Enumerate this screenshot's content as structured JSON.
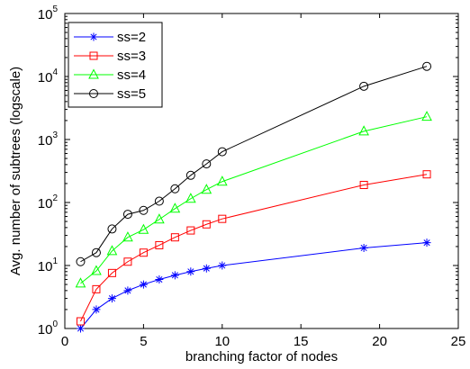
{
  "chart_data": {
    "type": "line",
    "xlabel": "branching factor of nodes",
    "ylabel": "Avg. number of subtrees (logscale)",
    "yscale": "log",
    "xlim": [
      0,
      25
    ],
    "ylim": [
      1,
      100000
    ],
    "xticks": [
      "0",
      "5",
      "10",
      "15",
      "20",
      "25"
    ],
    "yticks": [
      {
        "base": "10",
        "exp": "0"
      },
      {
        "base": "10",
        "exp": "1"
      },
      {
        "base": "10",
        "exp": "2"
      },
      {
        "base": "10",
        "exp": "3"
      },
      {
        "base": "10",
        "exp": "4"
      },
      {
        "base": "10",
        "exp": "5"
      }
    ],
    "grid": false,
    "legend_position": "top-left",
    "x": [
      1,
      2,
      3,
      4,
      5,
      6,
      7,
      8,
      9,
      10,
      19,
      23
    ],
    "series": [
      {
        "name": "ss=2",
        "color": "#0000ff",
        "marker": "asterisk",
        "values": [
          1,
          2,
          3,
          4,
          5,
          6,
          7,
          8,
          9,
          10,
          19,
          23
        ]
      },
      {
        "name": "ss=3",
        "color": "#ff0000",
        "marker": "square",
        "values": [
          1.3,
          4.2,
          7.6,
          11.5,
          16,
          21,
          28,
          36,
          45,
          55,
          190,
          280
        ]
      },
      {
        "name": "ss=4",
        "color": "#00ff00",
        "marker": "triangle",
        "values": [
          5.2,
          8.2,
          17,
          28,
          37,
          54,
          80,
          115,
          160,
          215,
          1350,
          2300
        ]
      },
      {
        "name": "ss=5",
        "color": "#000000",
        "marker": "circle",
        "values": [
          11.5,
          16,
          38,
          65,
          75,
          105,
          165,
          270,
          410,
          640,
          7000,
          14500
        ]
      }
    ]
  }
}
